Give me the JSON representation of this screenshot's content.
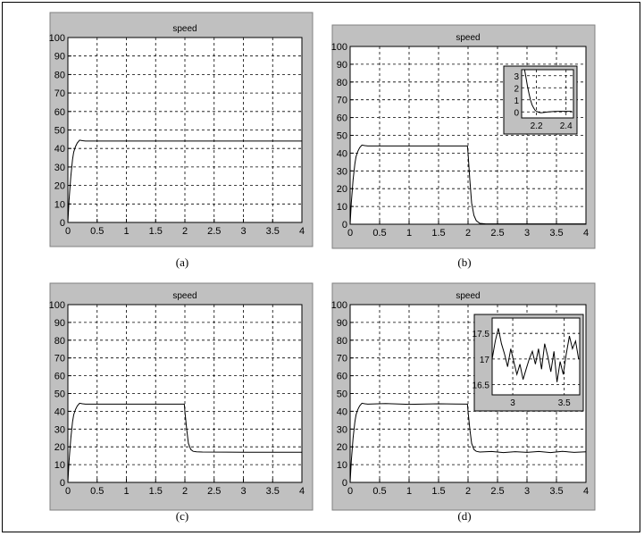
{
  "chart_data": [
    {
      "id": "a",
      "type": "line",
      "title": "speed",
      "caption": "(a)",
      "xlim": [
        0,
        4
      ],
      "ylim": [
        0,
        100
      ],
      "xticks": [
        0,
        0.5,
        1,
        1.5,
        2,
        2.5,
        3,
        3.5,
        4
      ],
      "xtick_labels": [
        "0",
        "0.5",
        "1",
        "1.5",
        "2",
        "2.5",
        "3",
        "3.5",
        "4"
      ],
      "yticks": [
        0,
        10,
        20,
        30,
        40,
        50,
        60,
        70,
        80,
        90,
        100
      ],
      "ytick_labels": [
        "0",
        "10",
        "20",
        "30",
        "40",
        "50",
        "60",
        "70",
        "80",
        "90",
        "100"
      ],
      "grid": true,
      "series": [
        {
          "x": [
            0,
            0.02,
            0.05,
            0.08,
            0.1,
            0.13,
            0.16,
            0.2,
            0.25,
            0.3,
            0.5,
            1,
            2,
            3,
            4
          ],
          "y": [
            0,
            12,
            25,
            34,
            38,
            41,
            43,
            44.5,
            44.2,
            44,
            44,
            44,
            44,
            44,
            44
          ]
        }
      ]
    },
    {
      "id": "b",
      "type": "line",
      "title": "speed",
      "caption": "(b)",
      "xlim": [
        0,
        4
      ],
      "ylim": [
        0,
        100
      ],
      "xticks": [
        0,
        0.5,
        1,
        1.5,
        2,
        2.5,
        3,
        3.5,
        4
      ],
      "xtick_labels": [
        "0",
        "0.5",
        "1",
        "1.5",
        "2",
        "2.5",
        "3",
        "3.5",
        "4"
      ],
      "yticks": [
        0,
        10,
        20,
        30,
        40,
        50,
        60,
        70,
        80,
        90,
        100
      ],
      "ytick_labels": [
        "0",
        "10",
        "20",
        "30",
        "40",
        "50",
        "60",
        "70",
        "80",
        "90",
        "100"
      ],
      "grid": true,
      "series": [
        {
          "x": [
            0,
            0.02,
            0.05,
            0.08,
            0.1,
            0.13,
            0.16,
            0.2,
            0.25,
            0.3,
            1,
            1.99,
            2.0,
            2.03,
            2.06,
            2.1,
            2.14,
            2.2,
            2.3,
            3,
            4
          ],
          "y": [
            0,
            12,
            25,
            34,
            38,
            41,
            43,
            44.5,
            44.2,
            44,
            44,
            44,
            40,
            25,
            12,
            5,
            2,
            0.5,
            0.2,
            0.2,
            0.2
          ]
        }
      ],
      "inset": {
        "xlim": [
          2.1,
          2.45
        ],
        "ylim": [
          -0.5,
          3.5
        ],
        "xticks": [
          2.2,
          2.4
        ],
        "xtick_labels": [
          "2.2",
          "2.4"
        ],
        "yticks": [
          0,
          1,
          2,
          3
        ],
        "ytick_labels": [
          "0",
          "1",
          "2",
          "3"
        ],
        "series": [
          {
            "x": [
              2.12,
              2.13,
              2.14,
              2.15,
              2.16,
              2.17,
              2.18,
              2.19,
              2.2,
              2.21,
              2.22,
              2.23,
              2.25,
              2.28,
              2.32,
              2.36,
              2.4,
              2.44
            ],
            "y": [
              3.5,
              2.8,
              2.1,
              1.5,
              1.0,
              0.6,
              0.35,
              0.15,
              0.05,
              0.0,
              -0.05,
              -0.08,
              -0.05,
              0.0,
              0.03,
              0.05,
              0.05,
              0.05
            ]
          }
        ]
      }
    },
    {
      "id": "c",
      "type": "line",
      "title": "speed",
      "caption": "(c)",
      "xlim": [
        0,
        4
      ],
      "ylim": [
        0,
        100
      ],
      "xticks": [
        0,
        0.5,
        1,
        1.5,
        2,
        2.5,
        3,
        3.5,
        4
      ],
      "xtick_labels": [
        "0",
        "0.5",
        "1",
        "1.5",
        "2",
        "2.5",
        "3",
        "3.5",
        "4"
      ],
      "yticks": [
        0,
        10,
        20,
        30,
        40,
        50,
        60,
        70,
        80,
        90,
        100
      ],
      "ytick_labels": [
        "0",
        "10",
        "20",
        "30",
        "40",
        "50",
        "60",
        "70",
        "80",
        "90",
        "100"
      ],
      "grid": true,
      "series": [
        {
          "x": [
            0,
            0.02,
            0.05,
            0.08,
            0.1,
            0.13,
            0.16,
            0.2,
            0.25,
            0.3,
            1,
            1.99,
            2.0,
            2.03,
            2.06,
            2.1,
            2.14,
            2.2,
            2.3,
            3,
            4
          ],
          "y": [
            0,
            12,
            25,
            34,
            38,
            41,
            43,
            44.5,
            44.2,
            44,
            44,
            44,
            40,
            30,
            22,
            18.5,
            17.5,
            17.2,
            17.1,
            17,
            17
          ]
        }
      ]
    },
    {
      "id": "d",
      "type": "line",
      "title": "speed",
      "caption": "(d)",
      "xlim": [
        0,
        4
      ],
      "ylim": [
        0,
        100
      ],
      "xticks": [
        0,
        0.5,
        1,
        1.5,
        2,
        2.5,
        3,
        3.5,
        4
      ],
      "xtick_labels": [
        "0",
        "0.5",
        "1",
        "1.5",
        "2",
        "2.5",
        "3",
        "3.5",
        "4"
      ],
      "yticks": [
        0,
        10,
        20,
        30,
        40,
        50,
        60,
        70,
        80,
        90,
        100
      ],
      "ytick_labels": [
        "0",
        "10",
        "20",
        "30",
        "40",
        "50",
        "60",
        "70",
        "80",
        "90",
        "100"
      ],
      "grid": true,
      "series": [
        {
          "x": [
            0,
            0.02,
            0.05,
            0.08,
            0.1,
            0.13,
            0.16,
            0.2,
            0.25,
            0.3,
            0.6,
            1,
            1.5,
            1.99,
            2.0,
            2.03,
            2.06,
            2.1,
            2.14,
            2.2,
            2.4,
            2.6,
            2.8,
            3.0,
            3.2,
            3.4,
            3.6,
            3.8,
            4
          ],
          "y": [
            0,
            12,
            25,
            34,
            38,
            41,
            43,
            44.5,
            44.2,
            44,
            44.3,
            43.9,
            44.2,
            44,
            40,
            30,
            22,
            18.5,
            17.5,
            17.1,
            17.4,
            16.8,
            17.3,
            16.9,
            17.4,
            16.8,
            17.5,
            16.9,
            17.2
          ]
        }
      ],
      "inset": {
        "xlim": [
          2.8,
          3.65
        ],
        "ylim": [
          16.3,
          17.8
        ],
        "xticks": [
          3,
          3.5
        ],
        "xtick_labels": [
          "3",
          "3.5"
        ],
        "yticks": [
          16.5,
          17,
          17.5
        ],
        "ytick_labels": [
          "16.5",
          "17",
          "17.5"
        ],
        "series": [
          {
            "x": [
              2.8,
              2.83,
              2.86,
              2.89,
              2.92,
              2.95,
              2.98,
              3.01,
              3.04,
              3.07,
              3.1,
              3.13,
              3.16,
              3.19,
              3.22,
              3.25,
              3.28,
              3.31,
              3.34,
              3.37,
              3.4,
              3.43,
              3.46,
              3.49,
              3.52,
              3.55,
              3.58,
              3.61,
              3.64
            ],
            "y": [
              17.0,
              17.35,
              17.6,
              17.3,
              17.1,
              16.85,
              17.2,
              16.95,
              16.7,
              16.9,
              16.6,
              16.8,
              17.0,
              17.15,
              16.9,
              17.2,
              16.8,
              17.3,
              17.05,
              16.75,
              17.15,
              16.55,
              16.95,
              16.7,
              17.1,
              17.45,
              17.2,
              17.35,
              17.0
            ]
          }
        ]
      }
    }
  ]
}
